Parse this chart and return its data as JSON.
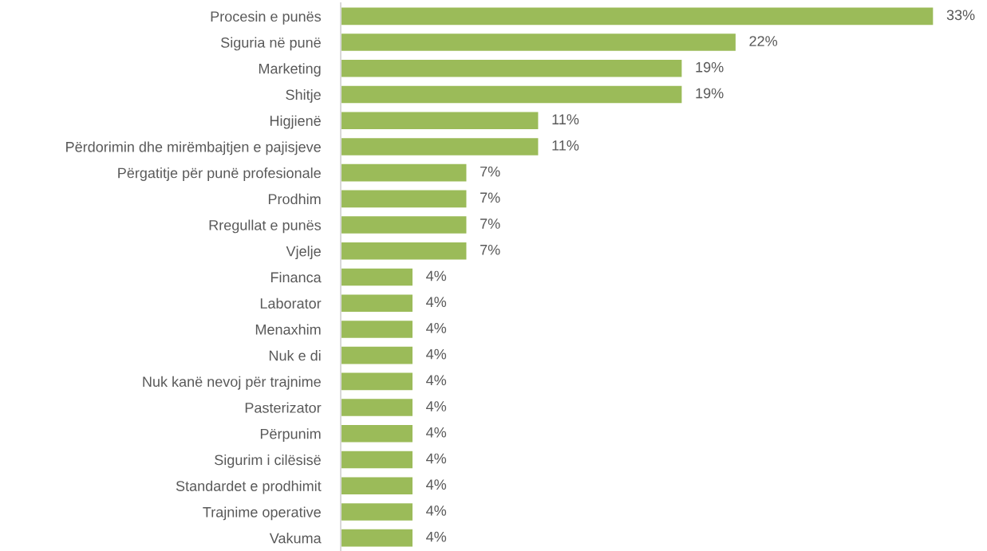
{
  "chart_data": {
    "type": "bar",
    "orientation": "horizontal",
    "categories": [
      "Procesin e punës",
      "Siguria në punë",
      "Marketing",
      "Shitje",
      "Higjienë",
      "Përdorimin dhe mirëmbajtjen e pajisjeve",
      "Përgatitje për punë profesionale",
      "Prodhim",
      "Rregullat e punës",
      "Vjelje",
      "Financa",
      "Laborator",
      "Menaxhim",
      "Nuk e di",
      "Nuk kanë nevoj për trajnime",
      "Pasterizator",
      "Përpunim",
      "Sigurim i cilësisë",
      "Standardet e prodhimit",
      "Trajnime operative",
      "Vakuma"
    ],
    "values": [
      33,
      22,
      19,
      19,
      11,
      11,
      7,
      7,
      7,
      7,
      4,
      4,
      4,
      4,
      4,
      4,
      4,
      4,
      4,
      4,
      4
    ],
    "value_labels": [
      "33%",
      "22%",
      "19%",
      "19%",
      "11%",
      "11%",
      "7%",
      "7%",
      "7%",
      "7%",
      "4%",
      "4%",
      "4%",
      "4%",
      "4%",
      "4%",
      "4%",
      "4%",
      "4%",
      "4%",
      "4%"
    ],
    "color": "#9bbb59",
    "tick_labels": "y"
  }
}
